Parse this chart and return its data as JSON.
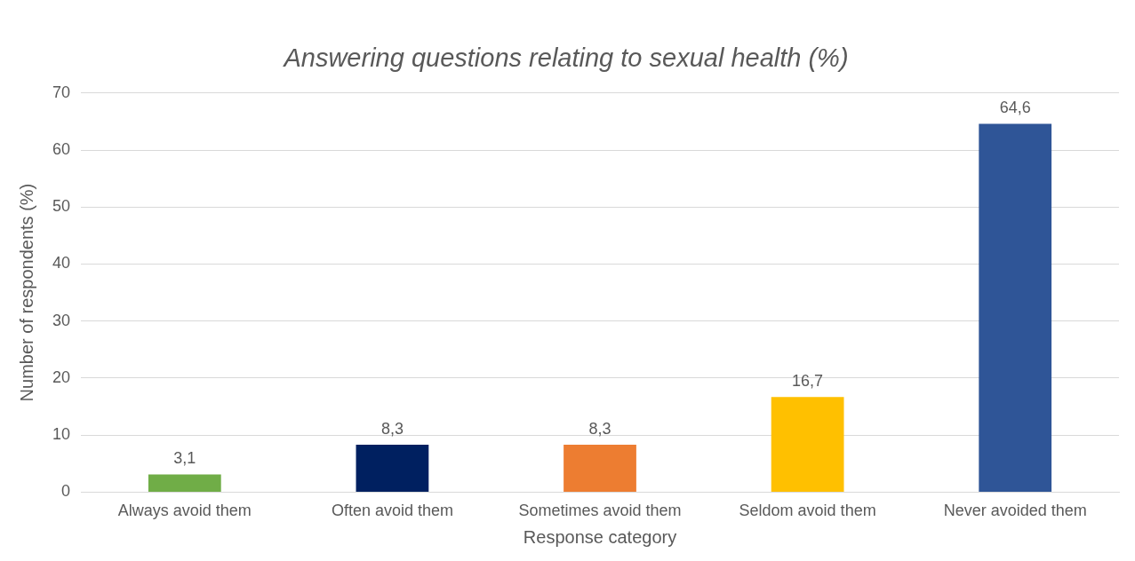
{
  "chart_data": {
    "type": "bar",
    "title": "Answering questions relating to sexual health (%)",
    "xlabel": "Response category",
    "ylabel": "Number of respondents (%)",
    "categories": [
      "Always avoid them",
      "Often avoid them",
      "Sometimes avoid them",
      "Seldom avoid them",
      "Never avoided them"
    ],
    "values": [
      3.1,
      8.3,
      8.3,
      16.7,
      64.6
    ],
    "colors": [
      "#70ad47",
      "#002060",
      "#ed7d31",
      "#ffc000",
      "#2f5597"
    ],
    "value_labels": [
      "3,1",
      "8,3",
      "8,3",
      "16,7",
      "64,6"
    ],
    "ylim": [
      0,
      70
    ],
    "yticks": [
      0,
      10,
      20,
      30,
      40,
      50,
      60,
      70
    ],
    "grid": "y",
    "legend": false
  }
}
